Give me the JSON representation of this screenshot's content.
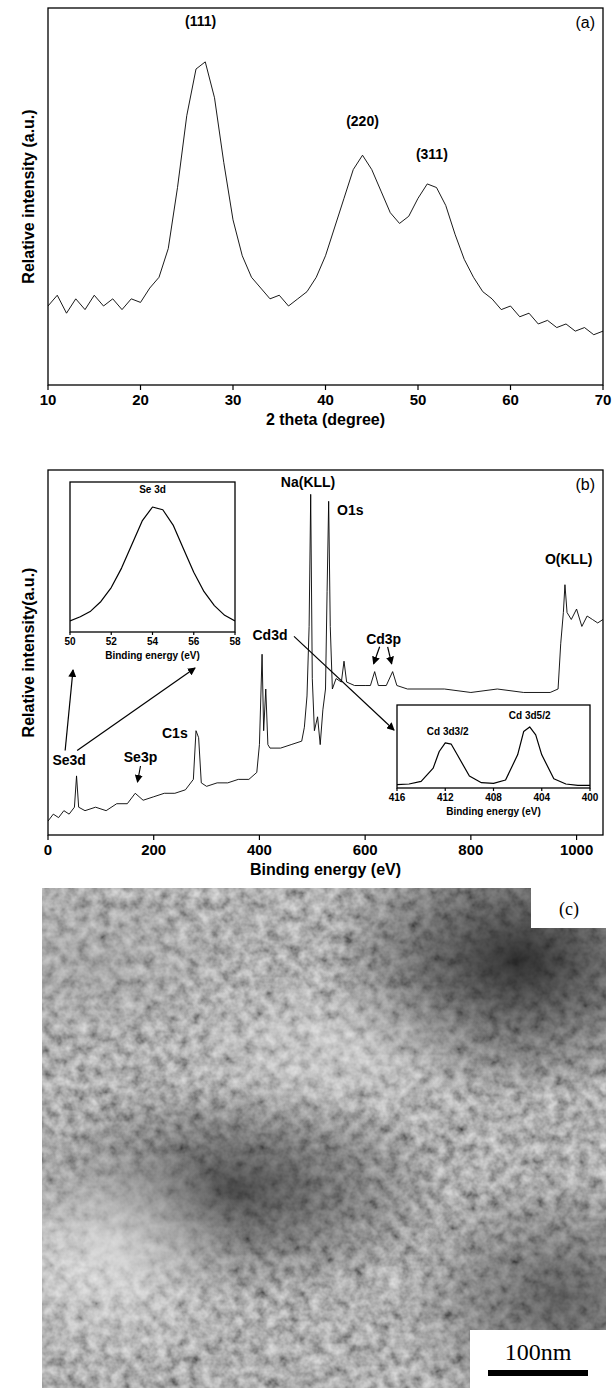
{
  "chart_data": [
    {
      "type": "line",
      "panel": "(a)",
      "x_label": "2 theta (degree)",
      "y_label": "Relative intensity (a.u.)",
      "color": "#000000",
      "x": [
        10,
        11,
        12,
        13,
        14,
        15,
        16,
        17,
        18,
        19,
        20,
        21,
        22,
        23,
        24,
        25,
        26,
        27,
        28,
        29,
        30,
        31,
        32,
        33,
        34,
        35,
        36,
        37,
        38,
        39,
        40,
        41,
        42,
        43,
        44,
        45,
        46,
        47,
        48,
        49,
        50,
        51,
        52,
        53,
        54,
        55,
        56,
        57,
        58,
        59,
        60,
        61,
        62,
        63,
        64,
        65,
        66,
        67,
        68,
        69,
        70
      ],
      "values": [
        22,
        25,
        20,
        24,
        21,
        25,
        22,
        24,
        21,
        24,
        23,
        27,
        30,
        38,
        55,
        75,
        88,
        90,
        80,
        62,
        46,
        36,
        30,
        27,
        24,
        25,
        22,
        24,
        26,
        30,
        36,
        44,
        52,
        60,
        64,
        60,
        54,
        48,
        45,
        47,
        52,
        56,
        55,
        50,
        42,
        35,
        30,
        26,
        24,
        21,
        22,
        19,
        20,
        17,
        18,
        16,
        17,
        15,
        16,
        14,
        15
      ],
      "xlim": [
        10,
        70
      ],
      "ylim": [
        0,
        105
      ],
      "xticks": [
        10,
        20,
        30,
        40,
        50,
        60,
        70
      ],
      "tick_labels": "x",
      "annotations": [
        {
          "text": "(111)",
          "x": 26.5,
          "y": 100
        },
        {
          "text": "(220)",
          "x": 44,
          "y": 72
        },
        {
          "text": "(311)",
          "x": 51.5,
          "y": 63
        }
      ]
    },
    {
      "type": "line",
      "panel": "(b)",
      "x_label": "Binding  energy (eV)",
      "y_label": "Relative intensity(a.u.)",
      "color": "#000000",
      "x": [
        0,
        10,
        20,
        30,
        40,
        50,
        54,
        58,
        70,
        90,
        110,
        130,
        150,
        165,
        180,
        200,
        220,
        240,
        260,
        275,
        280,
        285,
        290,
        300,
        320,
        340,
        360,
        380,
        395,
        400,
        405,
        408,
        412,
        416,
        420,
        440,
        460,
        480,
        485,
        490,
        494,
        497,
        500,
        504,
        510,
        515,
        520,
        525,
        528,
        531,
        534,
        538,
        545,
        555,
        560,
        565,
        580,
        600,
        610,
        618,
        625,
        640,
        652,
        660,
        680,
        700,
        750,
        800,
        850,
        900,
        950,
        965,
        970,
        975,
        978,
        982,
        990,
        1000,
        1010,
        1020,
        1030,
        1040,
        1050
      ],
      "values": [
        4,
        6,
        5,
        7,
        6,
        8,
        17,
        8,
        7,
        8,
        7,
        9,
        9,
        12,
        10,
        11,
        12,
        12,
        13,
        16,
        30,
        28,
        15,
        14,
        15,
        15,
        16,
        16,
        18,
        26,
        52,
        30,
        42,
        26,
        25,
        25,
        26,
        27,
        31,
        40,
        60,
        98,
        45,
        30,
        34,
        26,
        36,
        42,
        70,
        96,
        60,
        42,
        45,
        44,
        50,
        44,
        43,
        43,
        43,
        47,
        43,
        43,
        47,
        43,
        42,
        42,
        42,
        41,
        42,
        41,
        41,
        42,
        55,
        64,
        72,
        64,
        62,
        65,
        60,
        63,
        62,
        61,
        62
      ],
      "xlim": [
        0,
        1050
      ],
      "ylim": [
        0,
        105
      ],
      "xticks": [
        0,
        200,
        400,
        600,
        800,
        1000
      ],
      "tick_labels": "x",
      "annotations": [
        {
          "text": "Na(KLL)",
          "x": 492,
          "y": 100
        },
        {
          "text": "O1s",
          "x": 572,
          "y": 92
        },
        {
          "text": "O(KLL)",
          "x": 985,
          "y": 78
        },
        {
          "text": "Cd3p",
          "x": 635,
          "y": 55
        },
        {
          "text": "Cd3d",
          "x": 420,
          "y": 56
        },
        {
          "text": "C1s",
          "x": 240,
          "y": 28
        },
        {
          "text": "Se3p",
          "x": 175,
          "y": 21
        },
        {
          "text": "Se3d",
          "x": 40,
          "y": 20
        }
      ]
    },
    {
      "type": "line",
      "title": "Se 3d",
      "x_label": "Binding  energy (eV)",
      "color": "#000000",
      "x": [
        50,
        50.5,
        51,
        51.5,
        52,
        52.5,
        53,
        53.5,
        54,
        54.5,
        55,
        55.5,
        56,
        56.5,
        57,
        57.5,
        58
      ],
      "values": [
        8,
        11,
        15,
        22,
        32,
        46,
        63,
        80,
        90,
        88,
        77,
        60,
        43,
        29,
        19,
        12,
        8
      ],
      "xlim": [
        50,
        58
      ],
      "ylim": [
        0,
        108
      ],
      "xticks": [
        50,
        52,
        54,
        56,
        58
      ],
      "tick_labels": "x"
    },
    {
      "type": "line",
      "x_label": "Binding  energy (eV)",
      "color": "#000000",
      "x": [
        416,
        415,
        414,
        413,
        412.5,
        412,
        411.5,
        411,
        410,
        409,
        408,
        407,
        406,
        405.5,
        405,
        404.5,
        404,
        403,
        402,
        401,
        400
      ],
      "values": [
        5,
        6,
        10,
        30,
        55,
        68,
        66,
        50,
        18,
        8,
        7,
        12,
        50,
        85,
        92,
        80,
        50,
        14,
        6,
        4,
        4
      ],
      "xlim": [
        416,
        400
      ],
      "ylim": [
        0,
        125
      ],
      "xticks": [
        416,
        412,
        408,
        404,
        400
      ],
      "tick_labels": "x",
      "annotations": [
        {
          "text": "Cd 3d3/2",
          "x": 411.8,
          "y": 80
        },
        {
          "text": "Cd 3d5/2",
          "x": 405,
          "y": 104
        }
      ]
    }
  ],
  "image": {
    "label": "(c)",
    "scale_bar": "100nm"
  }
}
